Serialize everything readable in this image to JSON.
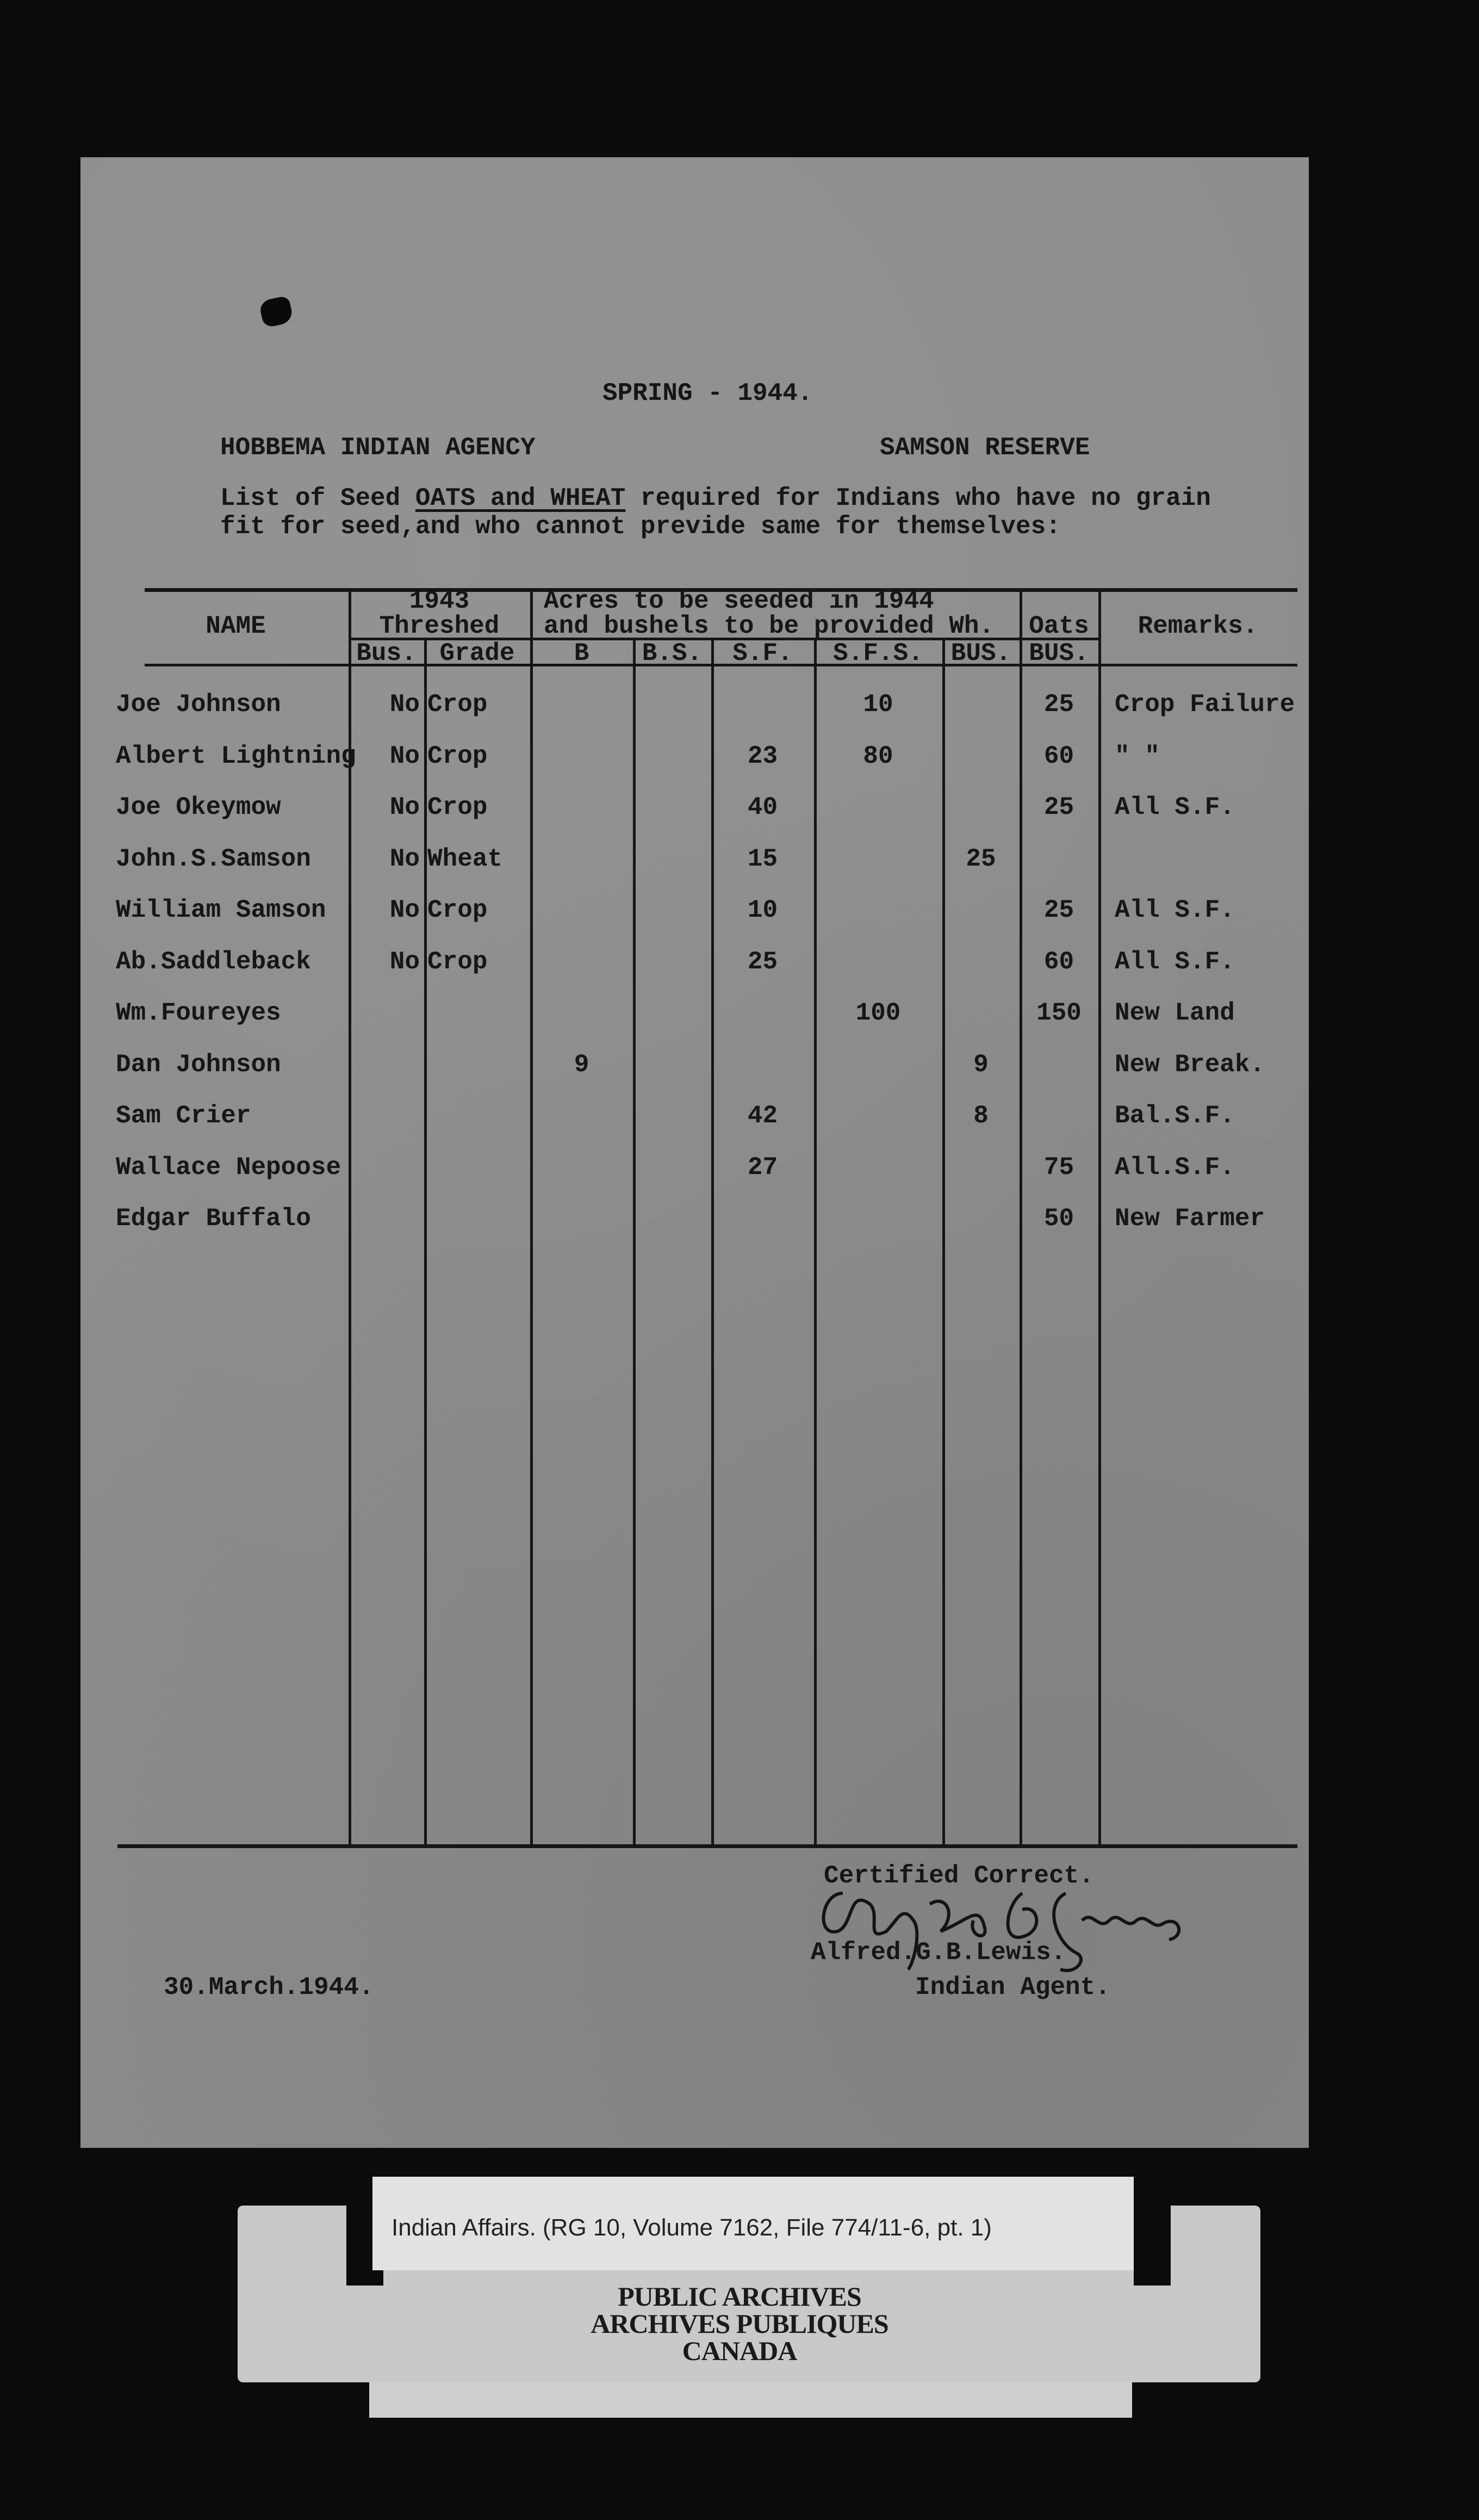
{
  "document": {
    "title": "SPRING - 1944.",
    "agency": "HOBBEMA INDIAN AGENCY",
    "reserve": "SAMSON RESERVE",
    "intro_line1_pre": "List of Seed ",
    "intro_line1_underlined": "OATS and WHEAT",
    "intro_line1_post": " required for Indians who have no grain",
    "intro_line2": "fit for seed,and who cannot previde same for themselves:"
  },
  "table": {
    "headers": {
      "name": "NAME",
      "threshed_year": "1943",
      "threshed": "Threshed",
      "acres_line1": "Acres to be seeded in 1944",
      "acres_line2": "and bushels to be provided Wh.",
      "oats": "Oats",
      "remarks": "Remarks.",
      "sub": [
        "Bus.",
        "Grade",
        "B",
        "B.S.",
        "S.F.",
        "S.F.S.",
        "BUS.",
        "BUS."
      ]
    },
    "rows": [
      {
        "name": "Joe Johnson",
        "bus": "No",
        "grade": "Crop",
        "b": "",
        "bs": "",
        "sf": "",
        "sfs": "10",
        "wh": "",
        "oats": "25",
        "remarks": "Crop Failure"
      },
      {
        "name": "Albert Lightning",
        "bus": "No",
        "grade": "Crop",
        "b": "",
        "bs": "",
        "sf": "23",
        "sfs": "80",
        "wh": "",
        "oats": "60",
        "remarks": "\"     \""
      },
      {
        "name": "Joe Okeymow",
        "bus": "No",
        "grade": "Crop",
        "b": "",
        "bs": "",
        "sf": "40",
        "sfs": "",
        "wh": "",
        "oats": "25",
        "remarks": "All S.F."
      },
      {
        "name": "John.S.Samson",
        "bus": "No",
        "grade": "Wheat",
        "b": "",
        "bs": "",
        "sf": "15",
        "sfs": "",
        "wh": "25",
        "oats": "",
        "remarks": ""
      },
      {
        "name": "William Samson",
        "bus": "No",
        "grade": "Crop",
        "b": "",
        "bs": "",
        "sf": "10",
        "sfs": "",
        "wh": "",
        "oats": "25",
        "remarks": "All S.F."
      },
      {
        "name": "Ab.Saddleback",
        "bus": "No",
        "grade": "Crop",
        "b": "",
        "bs": "",
        "sf": "25",
        "sfs": "",
        "wh": "",
        "oats": "60",
        "remarks": "All S.F."
      },
      {
        "name": "Wm.Foureyes",
        "bus": "",
        "grade": "",
        "b": "",
        "bs": "",
        "sf": "",
        "sfs": "100",
        "wh": "",
        "oats": "150",
        "remarks": "New Land"
      },
      {
        "name": "Dan Johnson",
        "bus": "",
        "grade": "",
        "b": "9",
        "bs": "",
        "sf": "",
        "sfs": "",
        "wh": "9",
        "oats": "",
        "remarks": "New Break."
      },
      {
        "name": "Sam Crier",
        "bus": "",
        "grade": "",
        "b": "",
        "bs": "",
        "sf": "42",
        "sfs": "",
        "wh": "8",
        "oats": "",
        "remarks": "Bal.S.F."
      },
      {
        "name": "Wallace Nepoose",
        "bus": "",
        "grade": "",
        "b": "",
        "bs": "",
        "sf": "27",
        "sfs": "",
        "wh": "",
        "oats": "75",
        "remarks": "All.S.F."
      },
      {
        "name": "Edgar Buffalo",
        "bus": "",
        "grade": "",
        "b": "",
        "bs": "",
        "sf": "",
        "sfs": "",
        "wh": "",
        "oats": "50",
        "remarks": "New Farmer"
      }
    ]
  },
  "footer": {
    "certified": "Certified Correct.",
    "signer": "Alfred.G.B.Lewis.",
    "signer_title": "Indian Agent.",
    "date": "30.March.1944.",
    "signature_text": "Alfred G. B. Lewis"
  },
  "archive_label": {
    "reference": "Indian Affairs. (RG 10, Volume 7162, File 774/11-6, pt. 1)",
    "line1": "PUBLIC ARCHIVES",
    "line2": "ARCHIVES PUBLIQUES",
    "line3": "CANADA"
  }
}
